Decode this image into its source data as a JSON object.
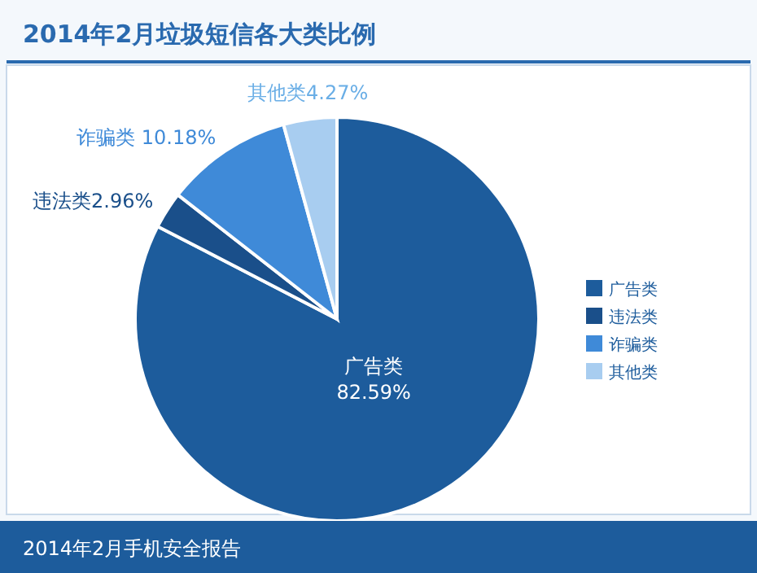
{
  "chart_data": {
    "type": "pie",
    "title": "2014年2月垃圾短信各大类比例",
    "categories": [
      "广告类",
      "违法类",
      "诈骗类",
      "其他类"
    ],
    "values": [
      82.59,
      2.96,
      10.18,
      4.27
    ],
    "value_labels": [
      "82.59%",
      "2.96%",
      "10.18%",
      "4.27%"
    ],
    "colors": [
      "#1d5c9c",
      "#1a4f8a",
      "#3f8ad8",
      "#a8cdf0"
    ],
    "legend": "right",
    "annotations": [
      "2014年2月手机安全报告"
    ]
  }
}
